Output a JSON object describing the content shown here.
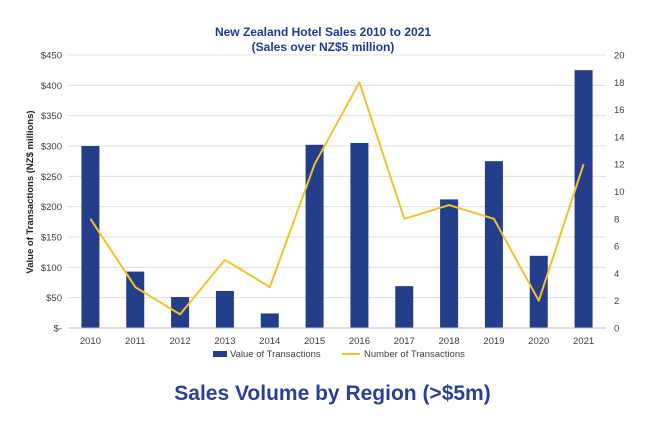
{
  "colors": {
    "title": "#1f3a93",
    "bar": "#233e8b",
    "line": "#f5c229",
    "grid": "#d9d9d9",
    "heading": "#2a3f98"
  },
  "heading": "Sales Volume by Region  (>$5m)",
  "chart_data": {
    "type": "bar",
    "title": "New Zealand Hotel Sales 2010 to 2021",
    "subtitle": "(Sales over NZ$5 million)",
    "ylabel": "Value of Transactions (NZ$ millions)",
    "y2label": "",
    "categories": [
      "2010",
      "2011",
      "2012",
      "2013",
      "2014",
      "2015",
      "2016",
      "2017",
      "2018",
      "2019",
      "2020",
      "2021"
    ],
    "ylim": [
      0,
      450
    ],
    "y2lim": [
      0,
      20
    ],
    "yticks": [
      "$-",
      "$50",
      "$100",
      "$150",
      "$200",
      "$250",
      "$300",
      "$350",
      "$400",
      "$450"
    ],
    "y2ticks": [
      "0",
      "2",
      "4",
      "6",
      "8",
      "10",
      "12",
      "14",
      "16",
      "18",
      "20"
    ],
    "grid": true,
    "legend": "bottom",
    "series": [
      {
        "name": "Value of Transactions",
        "type": "bar",
        "axis": "left",
        "values": [
          300,
          93,
          51,
          61,
          24,
          302,
          305,
          69,
          212,
          275,
          119,
          425
        ]
      },
      {
        "name": "Number of Transactions",
        "type": "line",
        "axis": "right",
        "values": [
          8,
          3,
          1,
          5,
          3,
          12,
          18,
          8,
          9,
          8,
          2,
          12
        ]
      }
    ]
  }
}
